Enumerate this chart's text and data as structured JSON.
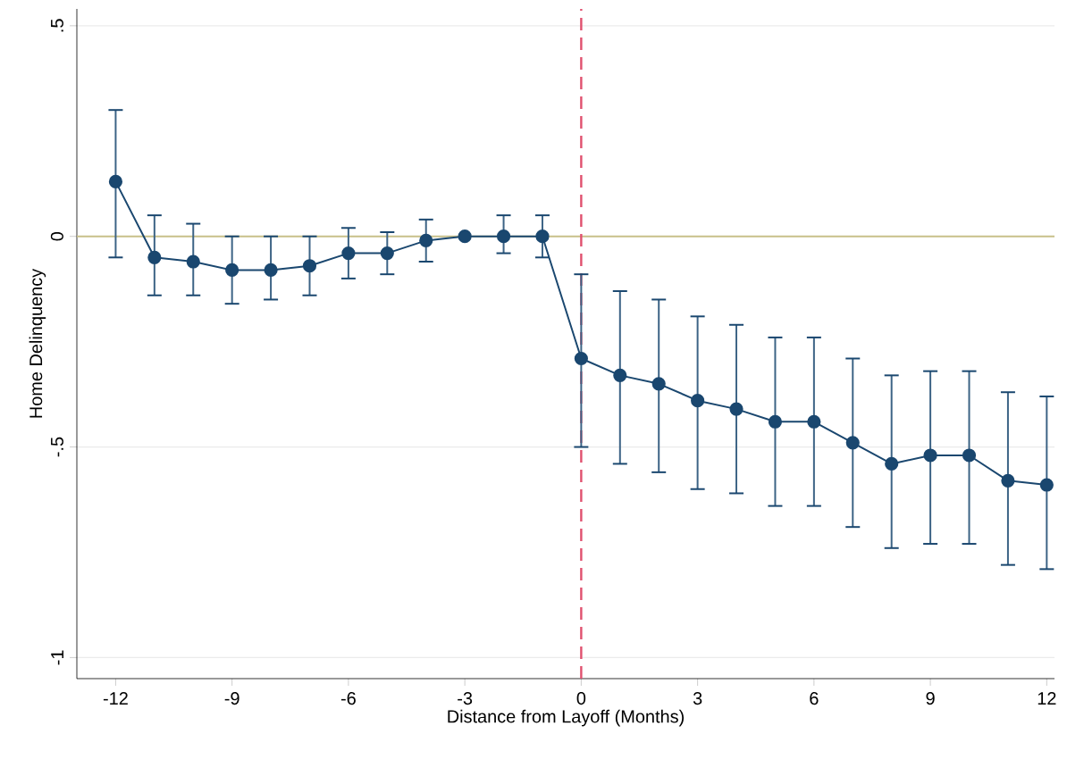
{
  "chart_data": {
    "type": "line",
    "xlabel": "Distance from Layoff (Months)",
    "ylabel": "Home Delinquency",
    "x": [
      -12,
      -11,
      -10,
      -9,
      -8,
      -7,
      -6,
      -5,
      -4,
      -3,
      -2,
      -1,
      0,
      1,
      2,
      3,
      4,
      5,
      6,
      7,
      8,
      9,
      10,
      11,
      12
    ],
    "series": [
      {
        "color": "#1a476f",
        "values": [
          0.13,
          -0.05,
          -0.06,
          -0.08,
          -0.08,
          -0.07,
          -0.04,
          -0.04,
          -0.01,
          0,
          0,
          0,
          -0.29,
          -0.33,
          -0.35,
          -0.39,
          -0.41,
          -0.44,
          -0.44,
          -0.49,
          -0.54,
          -0.52,
          -0.52,
          -0.58,
          -0.59
        ],
        "errors": [
          [
            -0.05,
            0.3
          ],
          [
            -0.14,
            0.05
          ],
          [
            -0.14,
            0.03
          ],
          [
            -0.16,
            0
          ],
          [
            -0.15,
            0
          ],
          [
            -0.14,
            0
          ],
          [
            -0.1,
            0.02
          ],
          [
            -0.09,
            0.01
          ],
          [
            -0.06,
            0.04
          ],
          null,
          [
            -0.04,
            0.05
          ],
          [
            -0.05,
            0.05
          ],
          [
            -0.5,
            -0.09
          ],
          [
            -0.54,
            -0.13
          ],
          [
            -0.56,
            -0.15
          ],
          [
            -0.6,
            -0.19
          ],
          [
            -0.61,
            -0.21
          ],
          [
            -0.64,
            -0.24
          ],
          [
            -0.64,
            -0.24
          ],
          [
            -0.69,
            -0.29
          ],
          [
            -0.74,
            -0.33
          ],
          [
            -0.73,
            -0.32
          ],
          [
            -0.73,
            -0.32
          ],
          [
            -0.78,
            -0.37
          ],
          [
            -0.79,
            -0.38
          ]
        ]
      }
    ],
    "xlim": [
      -13,
      12.2
    ],
    "ylim": [
      -1.05,
      0.54
    ],
    "xticks": [
      -12,
      -9,
      -6,
      -3,
      0,
      3,
      6,
      9,
      12
    ],
    "yticks": [
      {
        "value": 0.5,
        "label": ".5"
      },
      0,
      {
        "value": -0.5,
        "label": "-.5"
      },
      -1
    ],
    "ref_lines": [
      {
        "axis": "y",
        "value": 0,
        "color": "#c8c08a"
      },
      {
        "axis": "x",
        "value": 0,
        "color": "#e0506e",
        "line_style": "dashed"
      }
    ],
    "grid": "y",
    "marker": "circle",
    "line_style": "solid"
  }
}
